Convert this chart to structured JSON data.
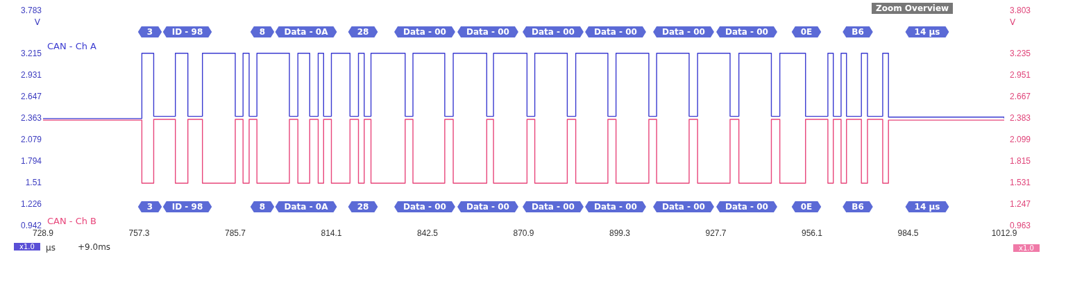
{
  "chart_data": {
    "type": "step",
    "xlabel": "µs",
    "ylabel": "V",
    "y2label": "V",
    "xlim": [
      728.9,
      1012.9
    ],
    "xticks": [
      728.9,
      757.3,
      785.7,
      814.1,
      842.5,
      870.9,
      899.3,
      927.7,
      956.1,
      984.5,
      1012.9
    ],
    "ylim": [
      0.942,
      3.783
    ],
    "yticks": [
      0.942,
      1.226,
      1.51,
      1.794,
      2.079,
      2.363,
      2.647,
      2.931,
      3.215,
      3.783
    ],
    "y2lim": [
      0.963,
      3.803
    ],
    "y2ticks": [
      0.963,
      1.247,
      1.531,
      1.815,
      2.099,
      2.383,
      2.667,
      2.951,
      3.235,
      3.803
    ],
    "grid": false,
    "legend": false,
    "marker": "none",
    "line_style": "solid",
    "series": [
      {
        "name": "CAN - Ch A",
        "color": "#3a3ad0",
        "x": [
          728.9,
          758.1,
          761.6,
          768.0,
          771.7,
          776.0,
          785.7,
          788.0,
          789.8,
          792.1,
          801.7,
          804.2,
          807.7,
          810.2,
          811.8,
          814.1,
          819.6,
          822.1,
          823.8,
          825.8,
          835.9,
          838.2,
          847.6,
          850.1,
          860.0,
          862.0,
          871.9,
          874.2,
          883.8,
          886.3,
          895.8,
          898.2,
          907.9,
          910.2,
          919.8,
          922.3,
          931.9,
          934.5,
          944.1,
          946.6,
          954.2,
          960.8,
          962.4,
          964.7,
          966.3,
          970.7,
          972.5,
          977.0,
          978.7,
          1012.9
        ],
        "values": [
          2.36,
          3.22,
          2.39,
          3.22,
          2.39,
          3.22,
          2.39,
          3.22,
          2.39,
          3.22,
          2.39,
          3.22,
          2.39,
          3.22,
          2.39,
          3.22,
          2.39,
          3.22,
          2.39,
          3.22,
          2.39,
          3.22,
          2.39,
          3.22,
          2.39,
          3.22,
          2.39,
          3.22,
          2.39,
          3.22,
          2.39,
          3.22,
          2.39,
          3.22,
          2.39,
          3.22,
          2.39,
          3.22,
          2.39,
          3.22,
          2.39,
          3.22,
          2.39,
          3.22,
          2.39,
          3.22,
          2.39,
          3.22,
          2.38,
          2.36
        ]
      },
      {
        "name": "CAN - Ch B",
        "color": "#e8457a",
        "axis": "y2",
        "x": [
          728.9,
          758.1,
          761.6,
          768.0,
          771.7,
          776.0,
          785.7,
          788.0,
          789.8,
          792.1,
          801.7,
          804.2,
          807.7,
          810.2,
          811.8,
          814.1,
          819.6,
          822.1,
          823.8,
          825.8,
          835.9,
          838.2,
          847.6,
          850.1,
          860.0,
          862.0,
          871.9,
          874.2,
          883.8,
          886.3,
          895.8,
          898.2,
          907.9,
          910.2,
          919.8,
          922.3,
          931.9,
          934.5,
          944.1,
          946.6,
          954.2,
          960.8,
          962.4,
          964.7,
          966.3,
          970.7,
          972.5,
          977.0,
          978.7,
          1012.9
        ],
        "values": [
          2.36,
          1.53,
          2.37,
          1.53,
          2.37,
          1.53,
          2.37,
          1.53,
          2.37,
          1.53,
          2.37,
          1.53,
          2.37,
          1.53,
          2.37,
          1.53,
          2.37,
          1.53,
          2.37,
          1.53,
          2.37,
          1.53,
          2.37,
          1.53,
          2.37,
          1.53,
          2.37,
          1.53,
          2.37,
          1.53,
          2.37,
          1.53,
          2.37,
          1.53,
          2.37,
          1.53,
          2.37,
          1.53,
          2.37,
          1.53,
          2.37,
          1.53,
          2.37,
          1.53,
          2.37,
          1.53,
          2.37,
          1.53,
          2.36,
          2.36
        ]
      }
    ],
    "annotations": [
      "3",
      "ID - 98",
      "8",
      "Data - 0A",
      "28",
      "Data - 00",
      "Data - 00",
      "Data - 00",
      "Data - 00",
      "Data - 00",
      "Data - 00",
      "0E",
      "B6",
      "14 µs",
      "3",
      "ID - 98",
      "8",
      "Data - 0A",
      "28",
      "Data - 00",
      "Data - 00",
      "Data - 00",
      "Data - 00",
      "Data - 00",
      "Data - 00",
      "0E",
      "B6",
      "14 µs",
      "x1.0",
      "+9.0ms",
      "Zoom Overview",
      "x1.0"
    ]
  }
}
